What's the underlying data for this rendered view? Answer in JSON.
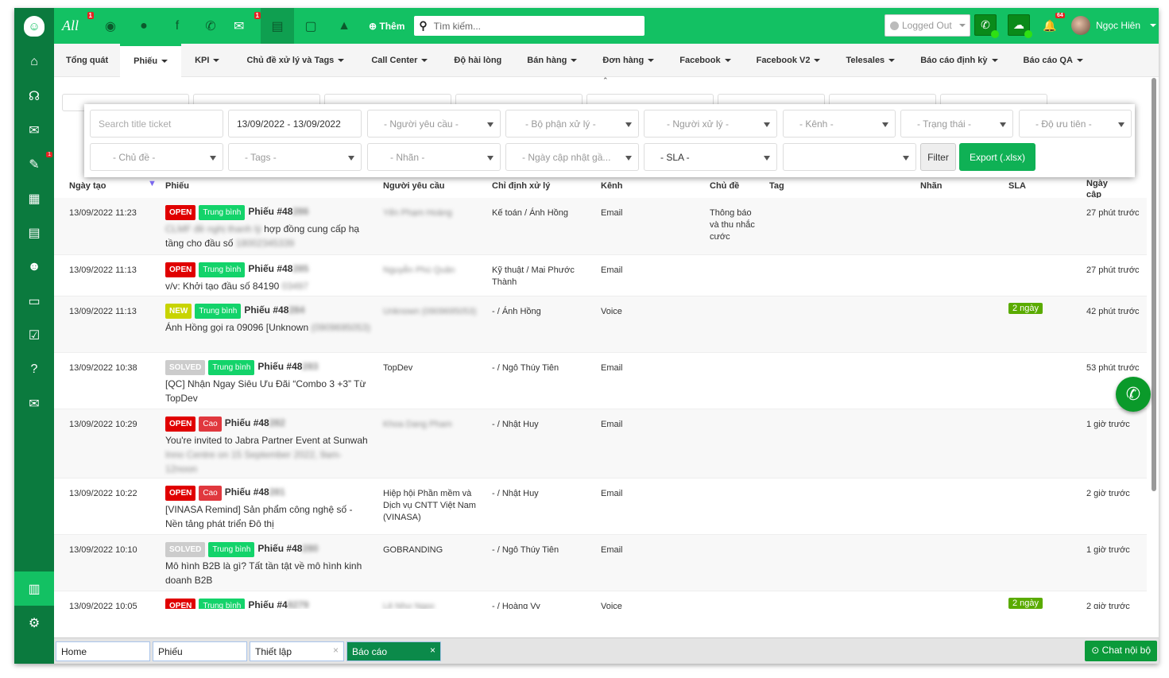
{
  "topbar": {
    "all_label": "All",
    "all_badge": "1",
    "mail_badge": "1",
    "add_label": "Thêm",
    "search_placeholder": "Tìm kiếm...",
    "status": "Logged Out",
    "notif_count": "64",
    "user_name": "Ngọc Hiên"
  },
  "nav": [
    "Tổng quát",
    "Phiếu",
    "KPI",
    "Chủ đề xử lý và Tags",
    "Call Center",
    "Độ hài lòng",
    "Bán hàng",
    "Đơn hàng",
    "Facebook",
    "Facebook V2",
    "Telesales",
    "Báo cáo định kỳ",
    "Báo cáo QA"
  ],
  "nav_caret": [
    false,
    true,
    true,
    true,
    true,
    false,
    true,
    true,
    true,
    true,
    true,
    true,
    true
  ],
  "sidebar_badge": "1",
  "filters": {
    "search_placeholder": "Search title ticket",
    "date_range": "13/09/2022 - 13/09/2022",
    "requester": "- Người yêu cầu -",
    "department": "- Bộ phận xử lý -",
    "assignee": "- Người xử lý -",
    "channel": "- Kênh -",
    "status": "- Trạng thái -",
    "priority": "- Độ ưu tiên -",
    "topic": "- Chủ đề -",
    "tags": "- Tags -",
    "label": "- Nhãn -",
    "updated": "- Ngày cập nhật gầ...",
    "sla": "- SLA -",
    "extra": "",
    "filter_btn": "Filter",
    "export_btn": "Export (.xlsx)"
  },
  "columns": {
    "created": "Ngày tạo",
    "ticket": "Phiếu",
    "requester": "Người yêu cầu",
    "assignee": "Chỉ định xử lý",
    "channel": "Kênh",
    "topic": "Chủ đề",
    "tag": "Tag",
    "label": "Nhãn",
    "sla": "SLA",
    "updated": "Ngày cập nhật"
  },
  "colors": {
    "open": "#e00000",
    "new": "#c8d400",
    "solved": "#cccccc",
    "medium": "#13d36a",
    "high": "#e0383e",
    "brand": "#13c163"
  },
  "tickets": [
    {
      "created": "13/09/2022 11:23",
      "status": "OPEN",
      "priority": "Trung bình",
      "title": "Phiếu #48",
      "title_blur": "286",
      "desc": "hợp đồng cung cấp hạ tầng cho đầu số",
      "desc_blur_pre": "CLMF đề nghị thanh lý",
      "desc_blur_post": "18002345339",
      "requester": "Yến Phạm Hoàng",
      "requester_blur": true,
      "assignee": "Kế toán / Ánh Hồng",
      "channel": "Email",
      "topic": "Thông báo và thu nhắc cước",
      "sla": "",
      "updated": "27 phút trước",
      "h": 72
    },
    {
      "created": "13/09/2022 11:13",
      "status": "OPEN",
      "priority": "Trung bình",
      "title": "Phiếu #48",
      "title_blur": "285",
      "desc": "v/v: Khởi tạo đầu số 84190",
      "desc_blur_pre": "",
      "desc_blur_post": "03497",
      "requester": "Nguyễn Phú Quân",
      "requester_blur": true,
      "assignee": "Kỹ thuật / Mai Phước Thành",
      "channel": "Email",
      "topic": "",
      "sla": "",
      "updated": "27 phút trước",
      "h": 52
    },
    {
      "created": "13/09/2022 11:13",
      "status": "NEW",
      "priority": "Trung bình",
      "title": "Phiếu #48",
      "title_blur": "284",
      "desc": "Ánh Hồng gọi ra 09096 [Unknown",
      "desc_blur_pre": "",
      "desc_blur_post": "(0909695053)",
      "requester": "Unknown (0909695053)",
      "requester_blur": true,
      "assignee": "- / Ánh Hồng",
      "channel": "Voice",
      "topic": "",
      "sla": "2 ngày",
      "updated": "42 phút trước",
      "h": 71
    },
    {
      "created": "13/09/2022 10:38",
      "status": "SOLVED",
      "priority": "Trung bình",
      "title": "Phiếu #48",
      "title_blur": "283",
      "desc": "[QC] Nhận Ngay Siêu Ưu Đãi “Combo 3 +3” Từ TopDev",
      "desc_blur_pre": "",
      "desc_blur_post": "",
      "requester": "TopDev",
      "requester_blur": false,
      "assignee": "- / Ngô Thúy Tiên",
      "channel": "Email",
      "topic": "",
      "sla": "",
      "updated": "53 phút trước",
      "h": 71
    },
    {
      "created": "13/09/2022 10:29",
      "status": "OPEN",
      "priority": "Cao",
      "title": "Phiếu #48",
      "title_blur": "282",
      "desc": "You're invited to Jabra Partner Event at Sunwah",
      "desc_blur_pre": "",
      "desc_blur_post": "Inno Centre on 15 September 2022, 9am-12noon",
      "requester": "Khoa Dang Pham",
      "requester_blur": true,
      "assignee": "- / Nhật Huy",
      "channel": "Email",
      "topic": "",
      "sla": "",
      "updated": "1 giờ trước",
      "h": 87
    },
    {
      "created": "13/09/2022 10:22",
      "status": "OPEN",
      "priority": "Cao",
      "title": "Phiếu #48",
      "title_blur": "281",
      "desc": "[VINASA Remind] Sản phẩm công nghệ số - Nền tảng phát triển Đô thị",
      "desc_blur_pre": "",
      "desc_blur_post": "",
      "requester": "Hiệp hội Phần mềm và Dịch vụ CNTT Việt Nam (VINASA)",
      "requester_blur": false,
      "assignee": "- / Nhật Huy",
      "channel": "Email",
      "topic": "",
      "sla": "",
      "updated": "2 giờ trước",
      "h": 71
    },
    {
      "created": "13/09/2022 10:10",
      "status": "SOLVED",
      "priority": "Trung bình",
      "title": "Phiếu #48",
      "title_blur": "280",
      "desc": "Mô hình B2B là gì? Tất tần tật về mô hình kinh doanh B2B",
      "desc_blur_pre": "",
      "desc_blur_post": "",
      "requester": "GOBRANDING",
      "requester_blur": false,
      "assignee": "- / Ngô Thúy Tiên",
      "channel": "Email",
      "topic": "",
      "sla": "",
      "updated": "1 giờ trước",
      "h": 71
    },
    {
      "created": "13/09/2022 10:05",
      "status": "OPEN",
      "priority": "Trung bình",
      "title": "Phiếu #4",
      "title_blur": "8279",
      "desc": "",
      "desc_blur_pre": "",
      "desc_blur_post": "",
      "requester": "Lê Như Ngọc",
      "requester_blur": true,
      "assignee": "- / Hoàng Vy",
      "channel": "Voice",
      "topic": "",
      "sla": "2 ngày",
      "updated": "2 giờ trước",
      "h": 71
    }
  ],
  "bottom_tabs": [
    {
      "label": "Home",
      "closable": false
    },
    {
      "label": "Phiếu",
      "closable": false
    },
    {
      "label": "Thiết lập",
      "closable": true
    },
    {
      "label": "Báo cáo",
      "closable": true,
      "active": true
    }
  ],
  "chat_label": "Chat nội bộ"
}
